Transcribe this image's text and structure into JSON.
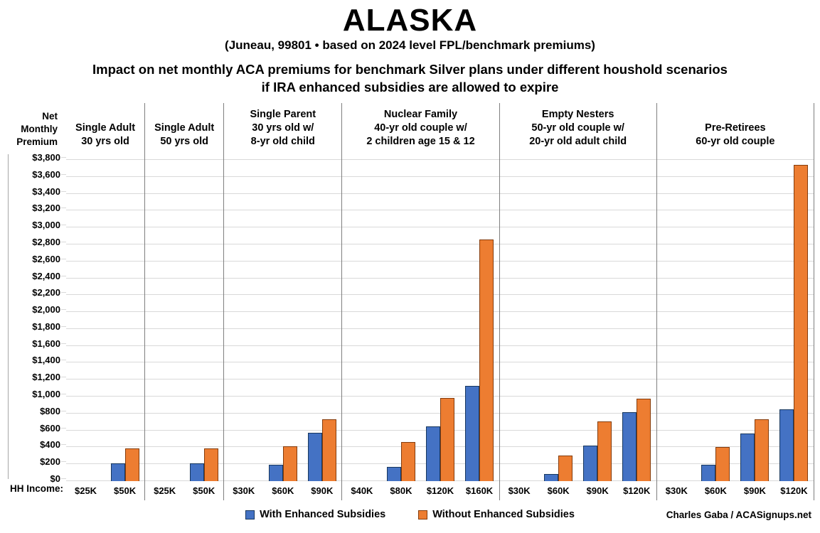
{
  "title": "ALASKA",
  "subtitle": "(Juneau, 99801 • based on 2024 level FPL/benchmark premiums)",
  "description_line1": "Impact on net monthly ACA premiums for benchmark Silver plans under different houshold scenarios",
  "description_line2": "if IRA enhanced subsidies are allowed to expire",
  "y_axis": {
    "label_lines": [
      "Net",
      "Monthly",
      "Premium"
    ],
    "hh_income_label": "HH Income:",
    "ticks": [
      {
        "label": "$3,800",
        "value": 3800
      },
      {
        "label": "$3,600",
        "value": 3600
      },
      {
        "label": "$3,400",
        "value": 3400
      },
      {
        "label": "$3,200",
        "value": 3200
      },
      {
        "label": "$3,000",
        "value": 3000
      },
      {
        "label": "$2,800",
        "value": 2800
      },
      {
        "label": "$2,600",
        "value": 2600
      },
      {
        "label": "$2,400",
        "value": 2400
      },
      {
        "label": "$2,200",
        "value": 2200
      },
      {
        "label": "$2,000",
        "value": 2000
      },
      {
        "label": "$1,800",
        "value": 1800
      },
      {
        "label": "$1,600",
        "value": 1600
      },
      {
        "label": "$1,400",
        "value": 1400
      },
      {
        "label": "$1,200",
        "value": 1200
      },
      {
        "label": "$1,000",
        "value": 1000
      },
      {
        "label": "$800",
        "value": 800
      },
      {
        "label": "$600",
        "value": 600
      },
      {
        "label": "$400",
        "value": 400
      },
      {
        "label": "$200",
        "value": 200
      },
      {
        "label": "$0",
        "value": 0
      }
    ]
  },
  "legend": [
    {
      "label": "With Enhanced Subsidies",
      "color": "#4472C4",
      "border": "#17375E"
    },
    {
      "label": "Without Enhanced Subsidies",
      "color": "#ED7D31",
      "border": "#843C0C"
    }
  ],
  "credit": "Charles Gaba / ACASignups.net",
  "colors": {
    "with_fill": "#4472C4",
    "with_border": "#17375E",
    "without_fill": "#ED7D31",
    "without_border": "#843C0C",
    "gridline": "#D9D9D9",
    "divider": "#7F7F7F"
  },
  "chart_data": {
    "type": "bar",
    "title": "ALASKA — Impact on net monthly ACA premiums for benchmark Silver plans under different houshold scenarios if IRA enhanced subsidies are allowed to expire",
    "xlabel": "HH Income",
    "ylabel": "Net Monthly Premium",
    "ylim": [
      0,
      3800
    ],
    "gridline_step": 200,
    "grid": true,
    "legend_position": "bottom",
    "series_names": [
      "With Enhanced Subsidies",
      "Without Enhanced Subsidies"
    ],
    "panels": [
      {
        "id": "single-adult-30",
        "label_lines": [
          "Single Adult",
          "30 yrs old"
        ],
        "categories": [
          "$25K",
          "$50K"
        ],
        "series": [
          {
            "name": "With Enhanced Subsidies",
            "values": [
              0,
              210
            ]
          },
          {
            "name": "Without Enhanced Subsidies",
            "values": [
              0,
              385
            ]
          }
        ]
      },
      {
        "id": "single-adult-50",
        "label_lines": [
          "Single Adult",
          "50 yrs old"
        ],
        "categories": [
          "$25K",
          "$50K"
        ],
        "series": [
          {
            "name": "With Enhanced Subsidies",
            "values": [
              0,
              210
            ]
          },
          {
            "name": "Without Enhanced Subsidies",
            "values": [
              0,
              385
            ]
          }
        ]
      },
      {
        "id": "single-parent",
        "label_lines": [
          "Single Parent",
          "30 yrs old w/",
          "8-yr old child"
        ],
        "categories": [
          "$30K",
          "$60K",
          "$90K"
        ],
        "series": [
          {
            "name": "With Enhanced Subsidies",
            "values": [
              0,
              190,
              570
            ]
          },
          {
            "name": "Without Enhanced Subsidies",
            "values": [
              0,
              410,
              735
            ]
          }
        ]
      },
      {
        "id": "nuclear-family",
        "label_lines": [
          "Nuclear Family",
          "40-yr old couple w/",
          "2 children age 15 & 12"
        ],
        "categories": [
          "$40K",
          "$80K",
          "$120K",
          "$160K"
        ],
        "series": [
          {
            "name": "With Enhanced Subsidies",
            "values": [
              0,
              170,
              645,
              1130
            ]
          },
          {
            "name": "Without Enhanced Subsidies",
            "values": [
              0,
              460,
              980,
              2860
            ]
          }
        ]
      },
      {
        "id": "empty-nesters",
        "label_lines": [
          "Empty Nesters",
          "50-yr old couple w/",
          "20-yr old adult child"
        ],
        "categories": [
          "$30K",
          "$60K",
          "$90K",
          "$120K"
        ],
        "series": [
          {
            "name": "With Enhanced Subsidies",
            "values": [
              0,
              85,
              420,
              815
            ]
          },
          {
            "name": "Without Enhanced Subsidies",
            "values": [
              0,
              300,
              710,
              975
            ]
          }
        ]
      },
      {
        "id": "pre-retirees",
        "label_lines": [
          "Pre-Retirees",
          "60-yr old couple"
        ],
        "categories": [
          "$30K",
          "$60K",
          "$90K",
          "$120K"
        ],
        "series": [
          {
            "name": "With Enhanced Subsidies",
            "values": [
              0,
              195,
              565,
              845
            ]
          },
          {
            "name": "Without Enhanced Subsidies",
            "values": [
              0,
              405,
              735,
              3745
            ]
          }
        ]
      }
    ]
  }
}
